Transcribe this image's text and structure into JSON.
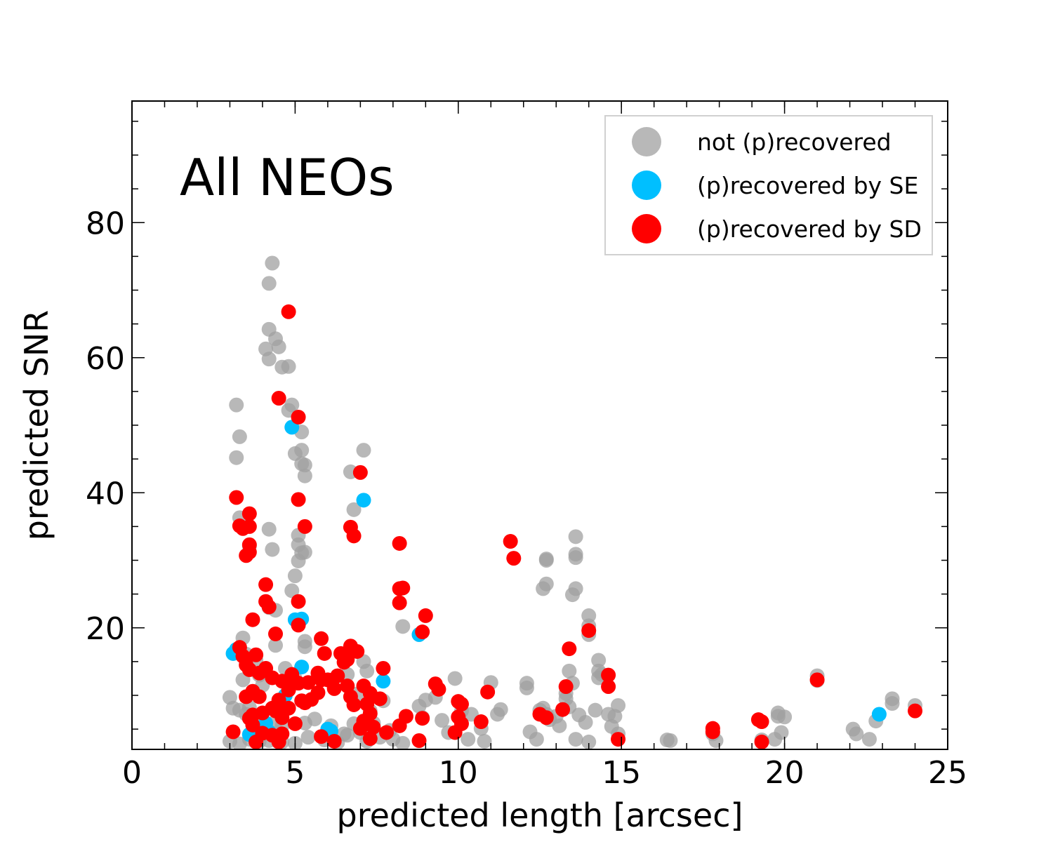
{
  "chart_data": {
    "type": "scatter",
    "annotation": "All NEOs",
    "xlabel": "predicted length [arcsec]",
    "ylabel": "predicted SNR",
    "xlim": [
      0,
      25
    ],
    "ylim": [
      2,
      98
    ],
    "xticks": [
      0,
      5,
      10,
      15,
      20,
      25
    ],
    "yticks": [
      20,
      40,
      60,
      80
    ],
    "xticks_minor_step": 1,
    "yticks_minor_step": 5,
    "grid": false,
    "legend_position": "top-right",
    "series": [
      {
        "name": "not (p)recovered",
        "color": "#a0a0a0",
        "points": [
          [
            3.2,
            53
          ],
          [
            3.3,
            48.3
          ],
          [
            3.2,
            45.2
          ],
          [
            4.3,
            74
          ],
          [
            4.2,
            71
          ],
          [
            4.2,
            64.2
          ],
          [
            4.4,
            62.8
          ],
          [
            4.1,
            61.3
          ],
          [
            4.5,
            61.6
          ],
          [
            4.2,
            59.8
          ],
          [
            4.6,
            58.6
          ],
          [
            4.8,
            58.7
          ],
          [
            4.9,
            53
          ],
          [
            4.8,
            52.2
          ],
          [
            5.2,
            49
          ],
          [
            5.2,
            46.3
          ],
          [
            5.0,
            45.8
          ],
          [
            5.2,
            44.3
          ],
          [
            5.3,
            44.1
          ],
          [
            5.3,
            42.5
          ],
          [
            6.7,
            43.1
          ],
          [
            7.1,
            46.3
          ],
          [
            6.8,
            37.5
          ],
          [
            4.2,
            34.6
          ],
          [
            4.3,
            31.6
          ],
          [
            5.1,
            33.7
          ],
          [
            5.1,
            32.3
          ],
          [
            5.2,
            31.1
          ],
          [
            5.1,
            29.9
          ],
          [
            5.3,
            31.2
          ],
          [
            5.0,
            27.7
          ],
          [
            4.9,
            25.5
          ],
          [
            4.2,
            23
          ],
          [
            4.4,
            22.6
          ],
          [
            5.3,
            18
          ],
          [
            5.3,
            17.2
          ],
          [
            4.4,
            17.4
          ],
          [
            3.4,
            18.5
          ],
          [
            3.3,
            36.3
          ],
          [
            3.6,
            32.1
          ],
          [
            3.1,
            16.2
          ],
          [
            3.5,
            16.1
          ],
          [
            3.8,
            15.2
          ],
          [
            3.4,
            12.3
          ],
          [
            3.9,
            13
          ],
          [
            4.0,
            11.5
          ],
          [
            4.7,
            14
          ],
          [
            5.0,
            12.5
          ],
          [
            3.0,
            9.7
          ],
          [
            3.1,
            8.1
          ],
          [
            3.3,
            7.8
          ],
          [
            3.5,
            7.2
          ],
          [
            3.6,
            8.2
          ],
          [
            3.9,
            6.9
          ],
          [
            4.0,
            5.8
          ],
          [
            4.4,
            6.1
          ],
          [
            4.6,
            5.5
          ],
          [
            5.3,
            5.9
          ],
          [
            5.6,
            6.5
          ],
          [
            6.1,
            5.5
          ],
          [
            6.5,
            4.3
          ],
          [
            6.8,
            5.8
          ],
          [
            7.0,
            4.5
          ],
          [
            7.4,
            5.9
          ],
          [
            7.9,
            4.8
          ],
          [
            3.0,
            3.2
          ],
          [
            3.3,
            2.8
          ],
          [
            3.6,
            3.5
          ],
          [
            3.9,
            3.2
          ],
          [
            4.2,
            3.3
          ],
          [
            4.6,
            3.1
          ],
          [
            5.0,
            2.9
          ],
          [
            5.4,
            3.8
          ],
          [
            5.9,
            3.4
          ],
          [
            6.3,
            3.0
          ],
          [
            6.6,
            4.1
          ],
          [
            7.2,
            3.2
          ],
          [
            7.6,
            3.8
          ],
          [
            8.0,
            3.5
          ],
          [
            8.3,
            2.9
          ],
          [
            8.3,
            20.2
          ],
          [
            8.8,
            19
          ],
          [
            7.1,
            15
          ],
          [
            7.2,
            13.6
          ],
          [
            6.6,
            13.1
          ],
          [
            6.9,
            10.2
          ],
          [
            7.7,
            9.2
          ],
          [
            7.3,
            7.7
          ],
          [
            8.8,
            8.4
          ],
          [
            9.0,
            9.3
          ],
          [
            9.3,
            9.7
          ],
          [
            8.9,
            6.7
          ],
          [
            9.5,
            6.3
          ],
          [
            9.7,
            4.5
          ],
          [
            9.9,
            12.5
          ],
          [
            10.1,
            7.7
          ],
          [
            10.4,
            7.2
          ],
          [
            10.7,
            5.1
          ],
          [
            10.3,
            3.5
          ],
          [
            10.8,
            3.2
          ],
          [
            11.0,
            11.9
          ],
          [
            11.2,
            7.2
          ],
          [
            11.3,
            7.9
          ],
          [
            12.1,
            11.8
          ],
          [
            12.1,
            11.1
          ],
          [
            12.2,
            4.6
          ],
          [
            12.4,
            3.5
          ],
          [
            12.5,
            7.8
          ],
          [
            12.6,
            8.1
          ],
          [
            12.7,
            7.2
          ],
          [
            12.8,
            6.4
          ],
          [
            13.0,
            6.9
          ],
          [
            13.1,
            5.5
          ],
          [
            12.7,
            30.2
          ],
          [
            12.7,
            30
          ],
          [
            12.7,
            26.5
          ],
          [
            12.6,
            25.8
          ],
          [
            13.6,
            33.5
          ],
          [
            13.6,
            30.9
          ],
          [
            13.6,
            30.4
          ],
          [
            13.6,
            25.8
          ],
          [
            13.5,
            24.9
          ],
          [
            14.0,
            21.8
          ],
          [
            14.0,
            20.3
          ],
          [
            14.0,
            19
          ],
          [
            14.3,
            15.2
          ],
          [
            14.3,
            13.6
          ],
          [
            14.3,
            12.6
          ],
          [
            14.4,
            13.1
          ],
          [
            13.4,
            13.6
          ],
          [
            13.3,
            9.5
          ],
          [
            13.4,
            8.3
          ],
          [
            13.7,
            7.1
          ],
          [
            13.5,
            11.8
          ],
          [
            13.3,
            10.3
          ],
          [
            14.2,
            7.8
          ],
          [
            14.6,
            7.2
          ],
          [
            14.8,
            6.9
          ],
          [
            14.9,
            8.5
          ],
          [
            14.7,
            5.4
          ],
          [
            14.9,
            4.3
          ],
          [
            13.6,
            3.5
          ],
          [
            14.0,
            3.1
          ],
          [
            13.9,
            6.0
          ],
          [
            16.4,
            3.4
          ],
          [
            16.5,
            3.3
          ],
          [
            17.8,
            4.3
          ],
          [
            17.9,
            3.3
          ],
          [
            19.8,
            7.4
          ],
          [
            19.8,
            6.9
          ],
          [
            19.9,
            4.5
          ],
          [
            19.7,
            3.5
          ],
          [
            20.0,
            6.8
          ],
          [
            19.3,
            3.4
          ],
          [
            21.0,
            12.9
          ],
          [
            21.0,
            12.2
          ],
          [
            22.1,
            5
          ],
          [
            22.2,
            4.3
          ],
          [
            22.6,
            3.5
          ],
          [
            22.8,
            6.2
          ],
          [
            23.3,
            9.5
          ],
          [
            23.3,
            8.8
          ],
          [
            24.0,
            8.5
          ]
        ]
      },
      {
        "name": "(p)recovered by SE",
        "color": "#00bfff",
        "points": [
          [
            3.1,
            16.2
          ],
          [
            3.2,
            16.8
          ],
          [
            4.9,
            49.7
          ],
          [
            7.1,
            38.9
          ],
          [
            5.0,
            21.2
          ],
          [
            5.2,
            21.3
          ],
          [
            5.2,
            14.2
          ],
          [
            4.7,
            10
          ],
          [
            3.6,
            4.2
          ],
          [
            4.1,
            5.9
          ],
          [
            4.2,
            4.6
          ],
          [
            6.0,
            5
          ],
          [
            6.1,
            4.7
          ],
          [
            7.7,
            12.1
          ],
          [
            8.8,
            19
          ],
          [
            22.9,
            7.2
          ]
        ]
      },
      {
        "name": "(p)recovered by SD",
        "color": "#ff0000",
        "points": [
          [
            4.8,
            66.8
          ],
          [
            4.5,
            54
          ],
          [
            5.1,
            51.2
          ],
          [
            5.1,
            39
          ],
          [
            3.2,
            39.3
          ],
          [
            3.6,
            36.9
          ],
          [
            3.3,
            35.1
          ],
          [
            3.6,
            35
          ],
          [
            3.4,
            34.7
          ],
          [
            3.6,
            32.3
          ],
          [
            3.6,
            31.2
          ],
          [
            3.5,
            30.7
          ],
          [
            5.3,
            35
          ],
          [
            7.0,
            43
          ],
          [
            6.7,
            34.9
          ],
          [
            6.8,
            33.6
          ],
          [
            8.2,
            32.5
          ],
          [
            8.2,
            25.8
          ],
          [
            8.3,
            25.9
          ],
          [
            8.2,
            23.7
          ],
          [
            9.0,
            21.8
          ],
          [
            8.9,
            19.4
          ],
          [
            11.6,
            32.8
          ],
          [
            11.7,
            30.3
          ],
          [
            13.4,
            16.9
          ],
          [
            14.0,
            19.6
          ],
          [
            4.1,
            26.4
          ],
          [
            4.1,
            23.9
          ],
          [
            4.2,
            23.1
          ],
          [
            5.1,
            23.9
          ],
          [
            5.1,
            20.4
          ],
          [
            3.7,
            21.2
          ],
          [
            4.4,
            19.1
          ],
          [
            5.8,
            18.4
          ],
          [
            3.3,
            17.1
          ],
          [
            3.4,
            15.8
          ],
          [
            3.8,
            16
          ],
          [
            3.5,
            14.5
          ],
          [
            3.6,
            13.8
          ],
          [
            3.9,
            13.3
          ],
          [
            4.1,
            14
          ],
          [
            4.3,
            12.6
          ],
          [
            4.6,
            12.1
          ],
          [
            4.9,
            13.1
          ],
          [
            5.0,
            12
          ],
          [
            5.4,
            11.9
          ],
          [
            5.7,
            13.3
          ],
          [
            6.0,
            12.3
          ],
          [
            6.4,
            16.2
          ],
          [
            6.6,
            15.3
          ],
          [
            6.7,
            17.3
          ],
          [
            6.9,
            16.5
          ],
          [
            6.5,
            14.9
          ],
          [
            6.3,
            12.9
          ],
          [
            6.2,
            11
          ],
          [
            7.1,
            11.4
          ],
          [
            7.3,
            10.3
          ],
          [
            7.6,
            9.5
          ],
          [
            7.2,
            8.7
          ],
          [
            5.7,
            10.4
          ],
          [
            5.5,
            9.4
          ],
          [
            5.3,
            8.9
          ],
          [
            4.8,
            8.1
          ],
          [
            4.5,
            9.3
          ],
          [
            4.3,
            8.1
          ],
          [
            4.0,
            7.4
          ],
          [
            3.7,
            7.1
          ],
          [
            3.5,
            9.8
          ],
          [
            3.6,
            6.6
          ],
          [
            3.7,
            5.6
          ],
          [
            4.0,
            4.4
          ],
          [
            4.5,
            3.1
          ],
          [
            4.4,
            7.7
          ],
          [
            4.6,
            6.7
          ],
          [
            4.8,
            10.8
          ],
          [
            5.1,
            11.8
          ],
          [
            5.9,
            16.2
          ],
          [
            5.8,
            12.3
          ],
          [
            6.6,
            11.4
          ],
          [
            6.7,
            9.8
          ],
          [
            6.8,
            8.6
          ],
          [
            7.3,
            7.3
          ],
          [
            7.1,
            6.2
          ],
          [
            7.4,
            5.3
          ],
          [
            7.0,
            5.1
          ],
          [
            7.3,
            3.6
          ],
          [
            7.7,
            14
          ],
          [
            7.8,
            4.5
          ],
          [
            8.2,
            5.5
          ],
          [
            8.4,
            6.9
          ],
          [
            8.8,
            3.3
          ],
          [
            8.9,
            6.6
          ],
          [
            9.3,
            11.7
          ],
          [
            9.4,
            10.9
          ],
          [
            10.0,
            9.1
          ],
          [
            10.1,
            8.7
          ],
          [
            10.0,
            6.8
          ],
          [
            10.1,
            5.8
          ],
          [
            9.9,
            4.5
          ],
          [
            10.7,
            6.1
          ],
          [
            10.9,
            10.5
          ],
          [
            12.5,
            7.2
          ],
          [
            12.7,
            6.7
          ],
          [
            13.2,
            7.9
          ],
          [
            13.3,
            11.3
          ],
          [
            14.6,
            13
          ],
          [
            14.6,
            11.3
          ],
          [
            14.9,
            3.5
          ],
          [
            17.8,
            5.1
          ],
          [
            17.8,
            4.6
          ],
          [
            19.2,
            6.4
          ],
          [
            19.3,
            6.1
          ],
          [
            19.3,
            3.1
          ],
          [
            21.0,
            12.3
          ],
          [
            24.0,
            7.7
          ],
          [
            3.1,
            4.6
          ],
          [
            3.8,
            3.1
          ],
          [
            5.8,
            3.9
          ],
          [
            6.2,
            3.2
          ],
          [
            4.3,
            4.1
          ],
          [
            4.6,
            4.3
          ],
          [
            5.0,
            5.8
          ],
          [
            5.2,
            9.2
          ],
          [
            3.9,
            9.8
          ],
          [
            3.7,
            10.6
          ]
        ]
      }
    ]
  }
}
